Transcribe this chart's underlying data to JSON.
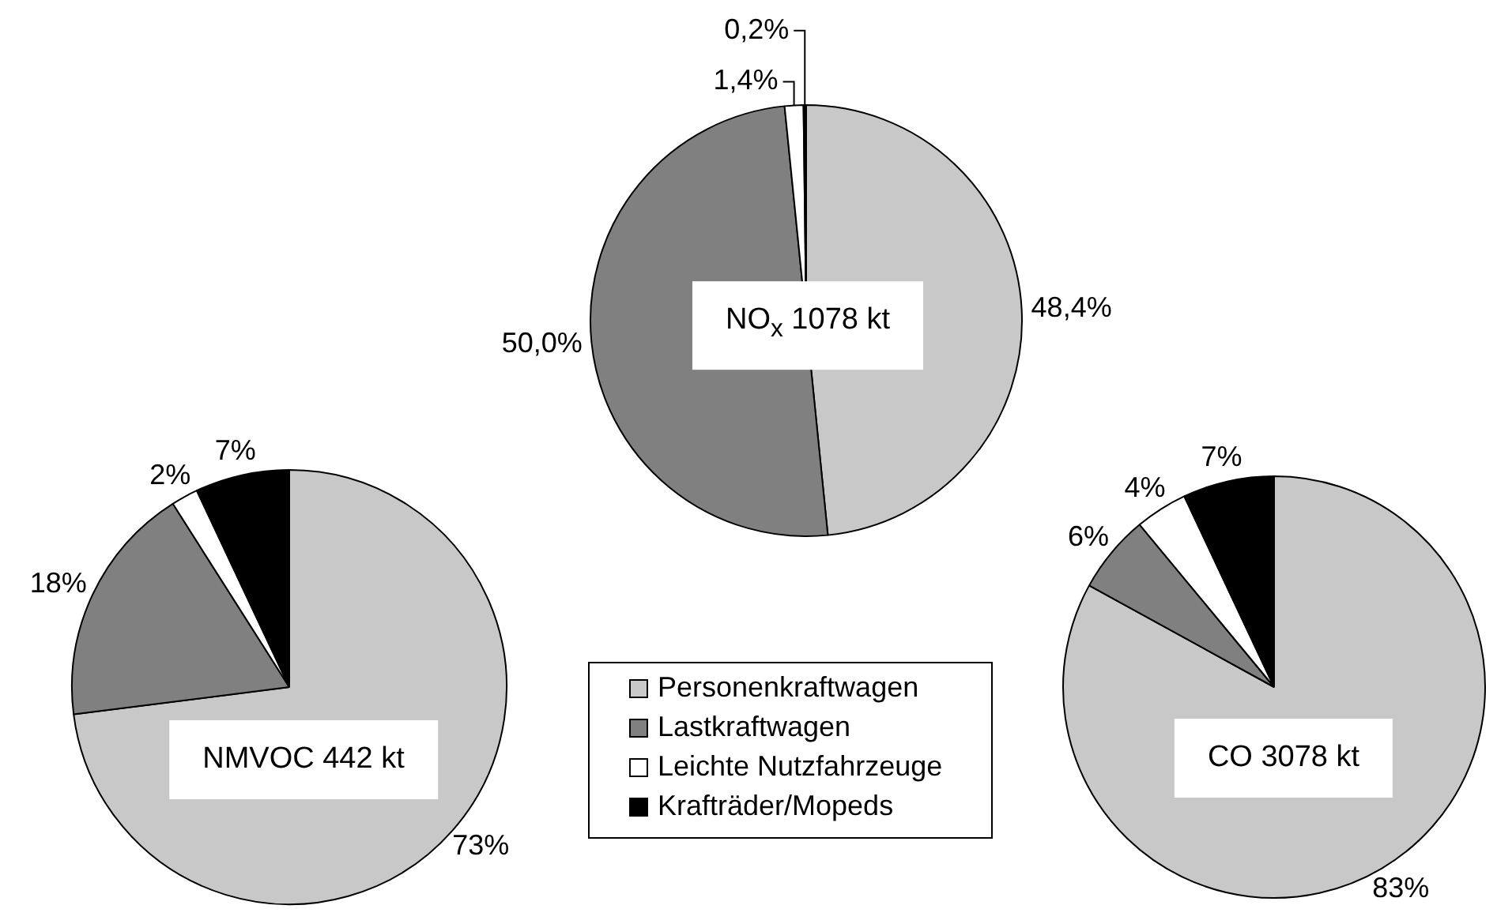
{
  "chart_data": [
    {
      "type": "pie",
      "title": "NO$_{x}$ 1078 kt",
      "categories": [
        "Personenkraftwagen",
        "Lastkraftwagen",
        "Leichte Nutzfahrzeuge",
        "Krafträder/Mopeds"
      ],
      "values": [
        48.4,
        50.0,
        1.4,
        0.2
      ],
      "colors": [
        "#c8c8c8",
        "#808080",
        "#ffffff",
        "#000000"
      ],
      "value_labels": [
        "48,4%",
        "50,0%",
        "1,4%",
        "0,2%"
      ],
      "legend": "bottom"
    },
    {
      "type": "pie",
      "title": "NMVOC 442 kt",
      "categories": [
        null,
        null,
        null,
        null
      ],
      "values": [
        73,
        18,
        2,
        7
      ],
      "colors": [
        "#c8c8c8",
        "#808080",
        "#ffffff",
        "#000000"
      ],
      "value_labels": [
        "73%",
        "18%",
        "2%",
        "7%"
      ],
      "legend": false
    },
    {
      "type": "pie",
      "title": "CO 3078 kt",
      "categories": [
        null,
        null,
        null,
        null
      ],
      "values": [
        83,
        6,
        4,
        7
      ],
      "colors": [
        "#c8c8c8",
        "#808080",
        "#ffffff",
        "#000000"
      ],
      "value_labels": [
        "83%",
        "6%",
        "4%",
        "7%"
      ],
      "legend": false
    }
  ]
}
